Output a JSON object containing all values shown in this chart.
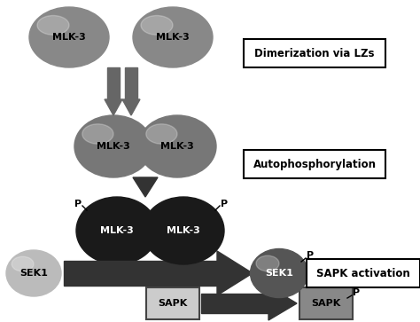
{
  "bg_color": "#ffffff",
  "mlk3_color_top": "#888888",
  "mlk3_color_mid": "#777777",
  "mlk3_color_bottom": "#1a1a1a",
  "sek1_left_color": "#bbbbbb",
  "sek1_right_color": "#555555",
  "arrow_color": "#666666",
  "arrow_color_dark": "#333333",
  "label_mlk3": "MLK-3",
  "label_sek1": "SEK1",
  "label_sapk": "SAPK",
  "label_p": "P",
  "box1_text": "Dimerization via LZs",
  "box2_text": "Autophosphorylation",
  "box3_text": "SAPK activation",
  "sapk_left_color": "#cccccc",
  "sapk_right_color": "#888888"
}
